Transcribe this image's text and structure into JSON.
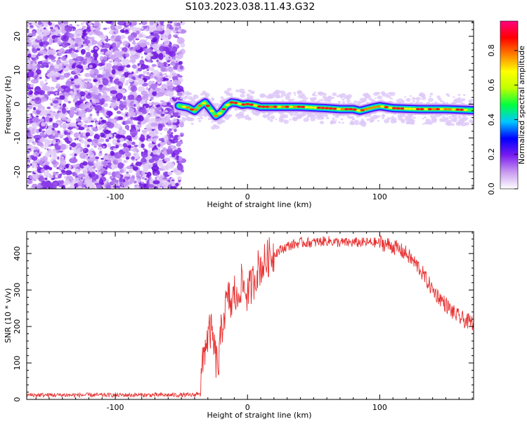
{
  "title": "S103.2023.038.11.43.G32",
  "chart_data": [
    {
      "type": "heatmap",
      "xlabel": "Height of straight line (km)",
      "ylabel": "Frequency (Hz)",
      "xlim": [
        -167,
        171
      ],
      "ylim": [
        -25,
        24.5
      ],
      "x_ticks": [
        -100,
        0,
        100
      ],
      "y_ticks": [
        -20,
        -10,
        0,
        10,
        20
      ],
      "noise_region_x": [
        -167,
        -52
      ],
      "signal_track": {
        "x": [
          -52,
          -45,
          -40,
          -36,
          -32,
          -28,
          -24,
          -20,
          -16,
          -12,
          -8,
          -4,
          0,
          5,
          10,
          20,
          40,
          60,
          70,
          80,
          85,
          90,
          95,
          100,
          110,
          130,
          150,
          171
        ],
        "y": [
          -0.5,
          -1.0,
          -2.0,
          -0.5,
          0.5,
          -1.5,
          -3.5,
          -2.5,
          -0.5,
          0.5,
          0.3,
          -0.2,
          0.0,
          -0.3,
          -0.8,
          -0.8,
          -0.8,
          -1.2,
          -1.5,
          -1.5,
          -2.0,
          -1.5,
          -1.0,
          -0.6,
          -1.2,
          -1.5,
          -1.5,
          -1.8
        ]
      },
      "colorbar": {
        "label": "Normalized spectral amplitude",
        "range": [
          0.0,
          0.97
        ],
        "ticks": [
          0.0,
          0.2,
          0.4,
          0.6,
          0.8
        ],
        "tick_labels": [
          "0.0",
          "0.2",
          "0.4",
          "0.6",
          "0.8"
        ],
        "colors": [
          "#ffffff",
          "#c89af0",
          "#7a1cf0",
          "#0000ff",
          "#00c8ff",
          "#00ff40",
          "#c0ff00",
          "#ffff00",
          "#ff8000",
          "#ff0000",
          "#ff0080"
        ]
      }
    },
    {
      "type": "line",
      "xlabel": "Height of straight line (km)",
      "ylabel": "SNR (10 * v/v)",
      "xlim": [
        -167,
        171
      ],
      "ylim": [
        0,
        460
      ],
      "x_ticks": [
        -100,
        0,
        100
      ],
      "y_ticks": [
        0,
        100,
        200,
        300,
        400
      ],
      "color": "#e83030",
      "series": [
        {
          "x": [
            -167,
            -140,
            -100,
            -60,
            -40,
            -36,
            -34,
            -32,
            -30,
            -28,
            -26,
            -24,
            -22,
            -20,
            -18,
            -16,
            -14,
            -12,
            -10,
            -8,
            -6,
            -4,
            -2,
            0,
            4,
            8,
            12,
            16,
            20,
            25,
            30,
            40,
            50,
            60,
            70,
            80,
            90,
            100,
            105,
            110,
            115,
            120,
            125,
            130,
            135,
            140,
            145,
            150,
            155,
            160,
            165,
            171
          ],
          "y": [
            12,
            12,
            12,
            12,
            12,
            20,
            90,
            150,
            170,
            190,
            160,
            110,
            90,
            180,
            230,
            260,
            280,
            250,
            300,
            260,
            310,
            320,
            300,
            290,
            320,
            360,
            370,
            390,
            400,
            410,
            420,
            430,
            430,
            435,
            430,
            430,
            430,
            430,
            425,
            420,
            410,
            400,
            380,
            360,
            330,
            300,
            280,
            260,
            240,
            225,
            215,
            210
          ]
        }
      ]
    }
  ]
}
